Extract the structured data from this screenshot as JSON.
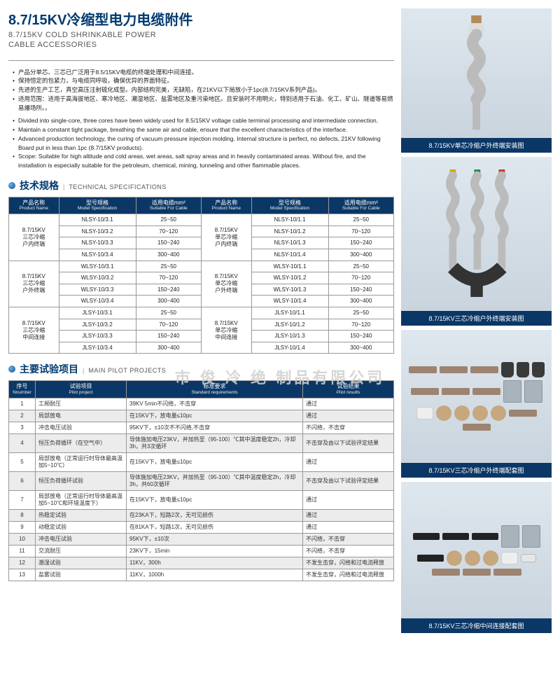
{
  "header": {
    "title_cn": "8.7/15KV冷缩型电力电缆附件",
    "title_en_l1": "8.7/15KV COLD SHRINKABLE POWER",
    "title_en_l2": "CABLE ACCESSORIES"
  },
  "bullets_cn": [
    "产品分单芯、三芯已广泛用于8.5/15KV电缆的终端处理和中间连接。",
    "保持恒定的包紧力，与电缆同呼吸，确保优异的界面特征。",
    "先进的生产工艺，真空高压注射硫化成型。内部结构完美，无缺陷，在21KV以下局放小于1pc(8.7/15KV系列产品)。",
    "适用范围：适用于高海拔地区、寒冷地区、潮湿地区、盐雾地区及重污染地区。且安装时不用明火，特别适用于石油、化工、矿山、隧道等易燃易爆场所。。"
  ],
  "bullets_en": [
    "Divided into single-core, three cores have been widely used for 8.5/15KV voltage cable terminal processing and intermediate connection.",
    "Maintain a constant tight package, breathing the same air and cable, ensure that the excellent characteristics of the interface.",
    "Advanced production technology, the curing of vacuum pressure injection molding. Internal structure is perfect, no defects, 21KV following Board put in less than 1pc (8.7/15KV products).",
    "Scope: Suitable for high altitude and cold areas, wet areas, salt spray areas and in heavily contaminated areas. Without fire, and the installation is especially suitable for the petroleum, chemical, mining, tunneling and other flammable places."
  ],
  "sections": {
    "tech_cn": "技术规格",
    "tech_en": "TECHNICAL SPECIFICATIONS",
    "pilot_cn": "主要试验项目",
    "pilot_en": "MAIN PILOT PROJECTS"
  },
  "spec_columns": {
    "pname_cn": "产品名称",
    "pname_en": "Product Name",
    "model_cn": "型号规格",
    "model_en": "Model Specification",
    "cable_cn": "适用电缆mm²",
    "cable_en": "Suitable For Cable"
  },
  "spec_left": [
    {
      "pname": "8.7/15KV\n三芯冷缩\n户内终端",
      "rows": [
        {
          "model": "NLSY-10/3.1",
          "cable": "25~50"
        },
        {
          "model": "NLSY-10/3.2",
          "cable": "70~120"
        },
        {
          "model": "NLSY-10/3.3",
          "cable": "150~240"
        },
        {
          "model": "NLSY-10/3.4",
          "cable": "300~400"
        }
      ]
    },
    {
      "pname": "8.7/15KV\n三芯冷缩\n户外终端",
      "rows": [
        {
          "model": "WLSY-10/3.1",
          "cable": "25~50"
        },
        {
          "model": "WLSY-10/3.2",
          "cable": "70~120"
        },
        {
          "model": "WLSY-10/3.3",
          "cable": "150~240"
        },
        {
          "model": "WLSY-10/3.4",
          "cable": "300~400"
        }
      ]
    },
    {
      "pname": "8.7/15KV\n三芯冷缩\n中间连接",
      "rows": [
        {
          "model": "JLSY-10/3.1",
          "cable": "25~50"
        },
        {
          "model": "JLSY-10/3.2",
          "cable": "70~120"
        },
        {
          "model": "JLSY-10/3.3",
          "cable": "150~240"
        },
        {
          "model": "JLSY-10/3.4",
          "cable": "300~400"
        }
      ]
    }
  ],
  "spec_right": [
    {
      "pname": "8.7/15KV\n单芯冷缩\n户内终端",
      "rows": [
        {
          "model": "NLSY-10/1.1",
          "cable": "25~50"
        },
        {
          "model": "NLSY-10/1.2",
          "cable": "70~120"
        },
        {
          "model": "NLSY-10/1.3",
          "cable": "150~240"
        },
        {
          "model": "NLSY-10/1.4",
          "cable": "300~400"
        }
      ]
    },
    {
      "pname": "8.7/15KV\n单芯冷缩\n户外终端",
      "rows": [
        {
          "model": "WLSY-10/1.1",
          "cable": "25~50"
        },
        {
          "model": "WLSY-10/1.2",
          "cable": "70~120"
        },
        {
          "model": "WLSY-10/1.3",
          "cable": "150~240"
        },
        {
          "model": "WLSY-10/1.4",
          "cable": "300~400"
        }
      ]
    },
    {
      "pname": "8.7/15KV\n单芯冷缩\n中间连接",
      "rows": [
        {
          "model": "JLSY-10/1.1",
          "cable": "25~50"
        },
        {
          "model": "JLSY-10/1.2",
          "cable": "70~120"
        },
        {
          "model": "JLSY-10/1.3",
          "cable": "150~240"
        },
        {
          "model": "JLSY-10/1.4",
          "cable": "300~400"
        }
      ]
    }
  ],
  "pilot_columns": {
    "no_cn": "序号",
    "no_en": "Nnumber",
    "proj_cn": "试验项目",
    "proj_en": "Pilot project",
    "req_cn": "标准要求",
    "req_en": "Standard requirements",
    "res_cn": "试验结果",
    "res_en": "Pilot results"
  },
  "pilot_rows": [
    {
      "no": "1",
      "proj": "工频耐压",
      "req": "39KV 5min不闪络，不击穿",
      "res": "通过"
    },
    {
      "no": "2",
      "proj": "局部放电",
      "req": "在15KV下，放电量≤10pc",
      "res": "通过"
    },
    {
      "no": "3",
      "proj": "冲击电压试验",
      "req": "95KV下，±10次不不闪络,不击穿",
      "res": "不闪络，不击穿"
    },
    {
      "no": "4",
      "proj": "恒压负荷循环（在空气中）",
      "req": "导体施加电压23KV，并加热至（95-100）℃其中温度稳定2h，冷却3h，共3次循环",
      "res": "不击穿及由以下试验评定结果"
    },
    {
      "no": "5",
      "proj": "局部放电（正常运行时导体最高温加5~10℃）",
      "req": "在15KV下，放电量≤10pc",
      "res": "通过"
    },
    {
      "no": "6",
      "proj": "恒压负荷循环试验",
      "req": "导体施加电压23KV，并加热至（95-100）℃其中温度稳定2h，冷却3h，共60次循环",
      "res": "不击穿及由以下试验评定结果"
    },
    {
      "no": "7",
      "proj": "局部放电（正常运行时导体最高温加5~10℃和环境温度下）",
      "req": "在15KV下，放电量≤10pc",
      "res": "通过"
    },
    {
      "no": "8",
      "proj": "热稳定试验",
      "req": "在23KA下，短路2次，无可见损伤",
      "res": "通过"
    },
    {
      "no": "9",
      "proj": "动稳定试验",
      "req": "在81KA下，短路1次，无可见损伤",
      "res": "通过"
    },
    {
      "no": "10",
      "proj": "冲击电压试验",
      "req": "95KV下，±10次",
      "res": "不闪络，不击穿"
    },
    {
      "no": "11",
      "proj": "交流耐压",
      "req": "23KV下，15min",
      "res": "不闪络，不击穿"
    },
    {
      "no": "12",
      "proj": "潮湿试验",
      "req": "11KV，300h",
      "res": "不发生击穿，闪络和过电流释放"
    },
    {
      "no": "13",
      "proj": "盐雾试验",
      "req": "11KV，1000h",
      "res": "不发生击穿，闪络和过电流释放"
    }
  ],
  "products": [
    {
      "caption": "8.7/15KV单芯冷缩户外终端安装图"
    },
    {
      "caption": "8.7/15KV三芯冷缩户外终端安装图"
    },
    {
      "caption": "8.7/15KV三芯冷缩户外终端配套图"
    },
    {
      "caption": "8.7/15KV三芯冷缩中间连接配套图"
    }
  ],
  "watermark": "市      俊    冷    绝    制品有限公司",
  "colors": {
    "brand_blue": "#003a6e",
    "table_header": "#0b3766",
    "border": "#999999",
    "alt_row": "#ececec"
  }
}
